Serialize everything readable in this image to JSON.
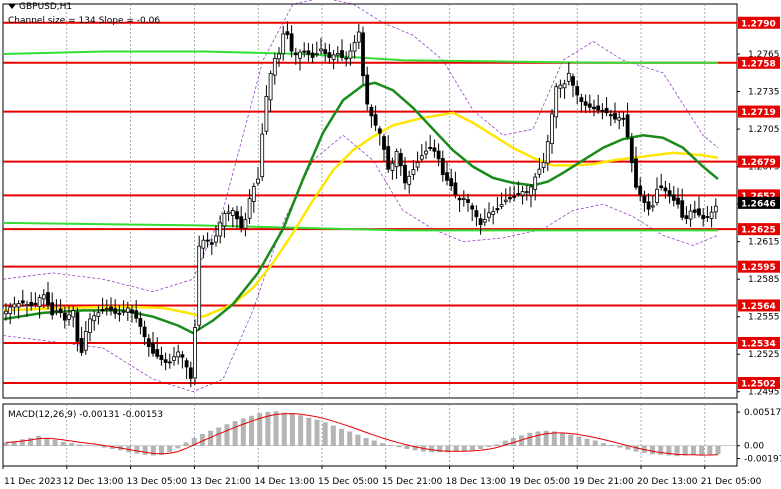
{
  "header": {
    "symbol": "GBPUSD,H1",
    "indicator_label": "Channel size = 134  Slope = -0.06"
  },
  "macd": {
    "label": "MACD(12,26,9) -0.00131 -0.00153",
    "scale_labels": [
      "0.00517",
      "0.00",
      "-0.00197"
    ]
  },
  "colors": {
    "background": "#ffffff",
    "candles": "#000000",
    "red_level": "#e60000",
    "green_ma": "#1a8a1a",
    "yellow_ma": "#ffe600",
    "light_green": "#33dd33",
    "purple_bands": "#9a40c8",
    "grid": "#777777",
    "macd_hist": "#b4b4b4",
    "macd_signal": "#e60000"
  },
  "chart_data": {
    "type": "candlestick",
    "y_range": [
      1.249,
      1.2805
    ],
    "price_ticks": [
      "1.2765",
      "1.2735",
      "1.2705",
      "1.2675",
      "1.2645",
      "1.2615",
      "1.2585",
      "1.2555",
      "1.2525",
      "1.2495"
    ],
    "levels": [
      {
        "label": "1.2790",
        "value": 1.279
      },
      {
        "label": "1.2758",
        "value": 1.2758
      },
      {
        "label": "1.2719",
        "value": 1.2719
      },
      {
        "label": "1.2679",
        "value": 1.2679
      },
      {
        "label": "1.2652",
        "value": 1.2652
      },
      {
        "label": "1.2625",
        "value": 1.2625
      },
      {
        "label": "1.2595",
        "value": 1.2595
      },
      {
        "label": "1.2564",
        "value": 1.2564
      },
      {
        "label": "1.2534",
        "value": 1.2534
      },
      {
        "label": "1.2502",
        "value": 1.2502
      }
    ],
    "current_price": {
      "label": "1.2646",
      "value": 1.2646
    },
    "time_labels": [
      "11 Dec 2023",
      "12 Dec 13:00",
      "13 Dec 05:00",
      "13 Dec 21:00",
      "14 Dec 13:00",
      "15 Dec 05:00",
      "15 Dec 21:00",
      "18 Dec 13:00",
      "19 Dec 05:00",
      "19 Dec 21:00",
      "20 Dec 13:00",
      "21 Dec 05:00"
    ],
    "close_path": [
      [
        0,
        1.2557
      ],
      [
        10,
        1.2565
      ],
      [
        20,
        1.2566
      ],
      [
        30,
        1.2563
      ],
      [
        40,
        1.2574
      ],
      [
        50,
        1.2555
      ],
      [
        55,
        1.2562
      ],
      [
        62,
        1.2552
      ],
      [
        70,
        1.2561
      ],
      [
        77,
        1.252
      ],
      [
        85,
        1.2552
      ],
      [
        95,
        1.2558
      ],
      [
        105,
        1.2562
      ],
      [
        115,
        1.2556
      ],
      [
        125,
        1.2562
      ],
      [
        135,
        1.2552
      ],
      [
        140,
        1.2542
      ],
      [
        148,
        1.2527
      ],
      [
        158,
        1.2521
      ],
      [
        165,
        1.2517
      ],
      [
        175,
        1.2527
      ],
      [
        182,
        1.252
      ],
      [
        186,
        1.2507
      ],
      [
        190,
        1.2504
      ],
      [
        195,
        1.261
      ],
      [
        202,
        1.2618
      ],
      [
        210,
        1.2612
      ],
      [
        220,
        1.2637
      ],
      [
        230,
        1.264
      ],
      [
        240,
        1.2623
      ],
      [
        248,
        1.2655
      ],
      [
        255,
        1.2665
      ],
      [
        262,
        1.2725
      ],
      [
        270,
        1.276
      ],
      [
        276,
        1.2765
      ],
      [
        282,
        1.2788
      ],
      [
        290,
        1.2763
      ],
      [
        300,
        1.2768
      ],
      [
        310,
        1.2762
      ],
      [
        318,
        1.2769
      ],
      [
        326,
        1.2762
      ],
      [
        334,
        1.2766
      ],
      [
        342,
        1.276
      ],
      [
        350,
        1.2771
      ],
      [
        356,
        1.2783
      ],
      [
        362,
        1.273
      ],
      [
        370,
        1.2712
      ],
      [
        378,
        1.27
      ],
      [
        386,
        1.267
      ],
      [
        394,
        1.2688
      ],
      [
        402,
        1.2662
      ],
      [
        410,
        1.2672
      ],
      [
        418,
        1.2683
      ],
      [
        426,
        1.269
      ],
      [
        434,
        1.2686
      ],
      [
        440,
        1.2668
      ],
      [
        448,
        1.266
      ],
      [
        455,
        1.2648
      ],
      [
        462,
        1.265
      ],
      [
        470,
        1.264
      ],
      [
        478,
        1.2628
      ],
      [
        486,
        1.2638
      ],
      [
        494,
        1.264
      ],
      [
        502,
        1.2648
      ],
      [
        510,
        1.265
      ],
      [
        518,
        1.2655
      ],
      [
        526,
        1.2655
      ],
      [
        534,
        1.267
      ],
      [
        542,
        1.268
      ],
      [
        548,
        1.2712
      ],
      [
        554,
        1.2743
      ],
      [
        560,
        1.2738
      ],
      [
        566,
        1.275
      ],
      [
        572,
        1.2735
      ],
      [
        580,
        1.2725
      ],
      [
        588,
        1.2722
      ],
      [
        596,
        1.272
      ],
      [
        604,
        1.2718
      ],
      [
        612,
        1.2713
      ],
      [
        620,
        1.2715
      ],
      [
        626,
        1.2694
      ],
      [
        632,
        1.266
      ],
      [
        640,
        1.2648
      ],
      [
        648,
        1.2638
      ],
      [
        655,
        1.266
      ],
      [
        662,
        1.2656
      ],
      [
        668,
        1.265
      ],
      [
        675,
        1.2645
      ],
      [
        681,
        1.263
      ],
      [
        688,
        1.264
      ],
      [
        695,
        1.2637
      ],
      [
        702,
        1.2632
      ],
      [
        710,
        1.264
      ],
      [
        715,
        1.2646
      ]
    ],
    "green_ma_path": [
      [
        0,
        1.2553
      ],
      [
        40,
        1.2558
      ],
      [
        80,
        1.256
      ],
      [
        120,
        1.256
      ],
      [
        150,
        1.2555
      ],
      [
        175,
        1.2548
      ],
      [
        190,
        1.2542
      ],
      [
        210,
        1.2552
      ],
      [
        230,
        1.2565
      ],
      [
        255,
        1.259
      ],
      [
        280,
        1.2625
      ],
      [
        300,
        1.2665
      ],
      [
        320,
        1.2702
      ],
      [
        340,
        1.2728
      ],
      [
        360,
        1.274
      ],
      [
        372,
        1.2742
      ],
      [
        390,
        1.2736
      ],
      [
        410,
        1.2722
      ],
      [
        430,
        1.2705
      ],
      [
        450,
        1.2688
      ],
      [
        470,
        1.2675
      ],
      [
        490,
        1.2666
      ],
      [
        510,
        1.2662
      ],
      [
        530,
        1.266
      ],
      [
        545,
        1.2663
      ],
      [
        560,
        1.267
      ],
      [
        580,
        1.268
      ],
      [
        600,
        1.269
      ],
      [
        620,
        1.2697
      ],
      [
        640,
        1.27
      ],
      [
        660,
        1.2698
      ],
      [
        680,
        1.269
      ],
      [
        700,
        1.2675
      ],
      [
        715,
        1.2665
      ]
    ],
    "yellow_ma_path": [
      [
        0,
        1.256
      ],
      [
        60,
        1.2562
      ],
      [
        120,
        1.2563
      ],
      [
        160,
        1.2562
      ],
      [
        185,
        1.2558
      ],
      [
        200,
        1.2555
      ],
      [
        230,
        1.2565
      ],
      [
        250,
        1.2578
      ],
      [
        270,
        1.2598
      ],
      [
        290,
        1.2622
      ],
      [
        310,
        1.2648
      ],
      [
        330,
        1.2672
      ],
      [
        350,
        1.2688
      ],
      [
        370,
        1.2699
      ],
      [
        390,
        1.2708
      ],
      [
        420,
        1.2714
      ],
      [
        450,
        1.2718
      ],
      [
        470,
        1.271
      ],
      [
        490,
        1.27
      ],
      [
        510,
        1.269
      ],
      [
        530,
        1.2682
      ],
      [
        550,
        1.2676
      ],
      [
        570,
        1.2676
      ],
      [
        590,
        1.2677
      ],
      [
        610,
        1.268
      ],
      [
        640,
        1.2683
      ],
      [
        670,
        1.2686
      ],
      [
        700,
        1.2684
      ],
      [
        715,
        1.2682
      ]
    ],
    "light_green_path": [
      [
        0,
        1.263
      ],
      [
        195,
        1.2628
      ],
      [
        400,
        1.2624
      ],
      [
        700,
        1.2624
      ],
      [
        715,
        1.2624
      ]
    ],
    "light_green_top_path": [
      [
        0,
        1.2765
      ],
      [
        100,
        1.2767
      ],
      [
        200,
        1.2767
      ],
      [
        300,
        1.2765
      ],
      [
        400,
        1.276
      ],
      [
        500,
        1.2759
      ],
      [
        600,
        1.2758
      ],
      [
        715,
        1.2758
      ]
    ],
    "band_upper_path": [
      [
        0,
        1.2585
      ],
      [
        50,
        1.259
      ],
      [
        100,
        1.2585
      ],
      [
        150,
        1.2575
      ],
      [
        190,
        1.2585
      ],
      [
        220,
        1.264
      ],
      [
        260,
        1.276
      ],
      [
        290,
        1.2805
      ],
      [
        320,
        1.281
      ],
      [
        350,
        1.2805
      ],
      [
        380,
        1.279
      ],
      [
        410,
        1.278
      ],
      [
        440,
        1.276
      ],
      [
        470,
        1.272
      ],
      [
        500,
        1.27
      ],
      [
        530,
        1.2705
      ],
      [
        560,
        1.276
      ],
      [
        590,
        1.2775
      ],
      [
        620,
        1.276
      ],
      [
        660,
        1.275
      ],
      [
        700,
        1.27
      ],
      [
        715,
        1.269
      ]
    ],
    "band_lower_path": [
      [
        0,
        1.254
      ],
      [
        50,
        1.2535
      ],
      [
        100,
        1.253
      ],
      [
        150,
        1.2505
      ],
      [
        190,
        1.2495
      ],
      [
        220,
        1.2505
      ],
      [
        250,
        1.256
      ],
      [
        280,
        1.263
      ],
      [
        310,
        1.268
      ],
      [
        340,
        1.27
      ],
      [
        370,
        1.268
      ],
      [
        400,
        1.264
      ],
      [
        430,
        1.2625
      ],
      [
        460,
        1.2615
      ],
      [
        500,
        1.2618
      ],
      [
        540,
        1.2625
      ],
      [
        570,
        1.264
      ],
      [
        600,
        1.2645
      ],
      [
        630,
        1.2635
      ],
      [
        660,
        1.262
      ],
      [
        690,
        1.2612
      ],
      [
        715,
        1.262
      ]
    ],
    "macd_y_range": [
      -0.0025,
      0.0058
    ],
    "macd_hist": [
      0.0005,
      0.0007,
      0.001,
      0.0012,
      0.0015,
      0.0012,
      0.0009,
      0.0006,
      0.0004,
      0.0002,
      0.0001,
      -0.0001,
      -0.0003,
      -0.0005,
      -0.0007,
      -0.001,
      -0.0012,
      -0.0014,
      -0.0015,
      -0.0014,
      -0.001,
      -0.0004,
      0.0005,
      0.0012,
      0.0018,
      0.0023,
      0.0028,
      0.0033,
      0.0038,
      0.0042,
      0.0046,
      0.005,
      0.0052,
      0.0053,
      0.0051,
      0.005,
      0.0047,
      0.0043,
      0.004,
      0.0036,
      0.0031,
      0.0026,
      0.0022,
      0.0017,
      0.0012,
      0.0008,
      0.0004,
      0.0001,
      -0.0002,
      -0.0005,
      -0.0007,
      -0.0009,
      -0.001,
      -0.001,
      -0.001,
      -0.0009,
      -0.0008,
      -0.0007,
      -0.0005,
      -0.0002,
      0.0002,
      0.0008,
      0.0012,
      0.0016,
      0.002,
      0.0022,
      0.0023,
      0.0022,
      0.002,
      0.0017,
      0.0014,
      0.0011,
      0.0008,
      0.0004,
      0.0001,
      -0.0003,
      -0.0006,
      -0.0009,
      -0.0011,
      -0.0013,
      -0.0014,
      -0.0015,
      -0.0016,
      -0.0015,
      -0.0014,
      -0.0015,
      -0.0014,
      -0.0013
    ]
  }
}
